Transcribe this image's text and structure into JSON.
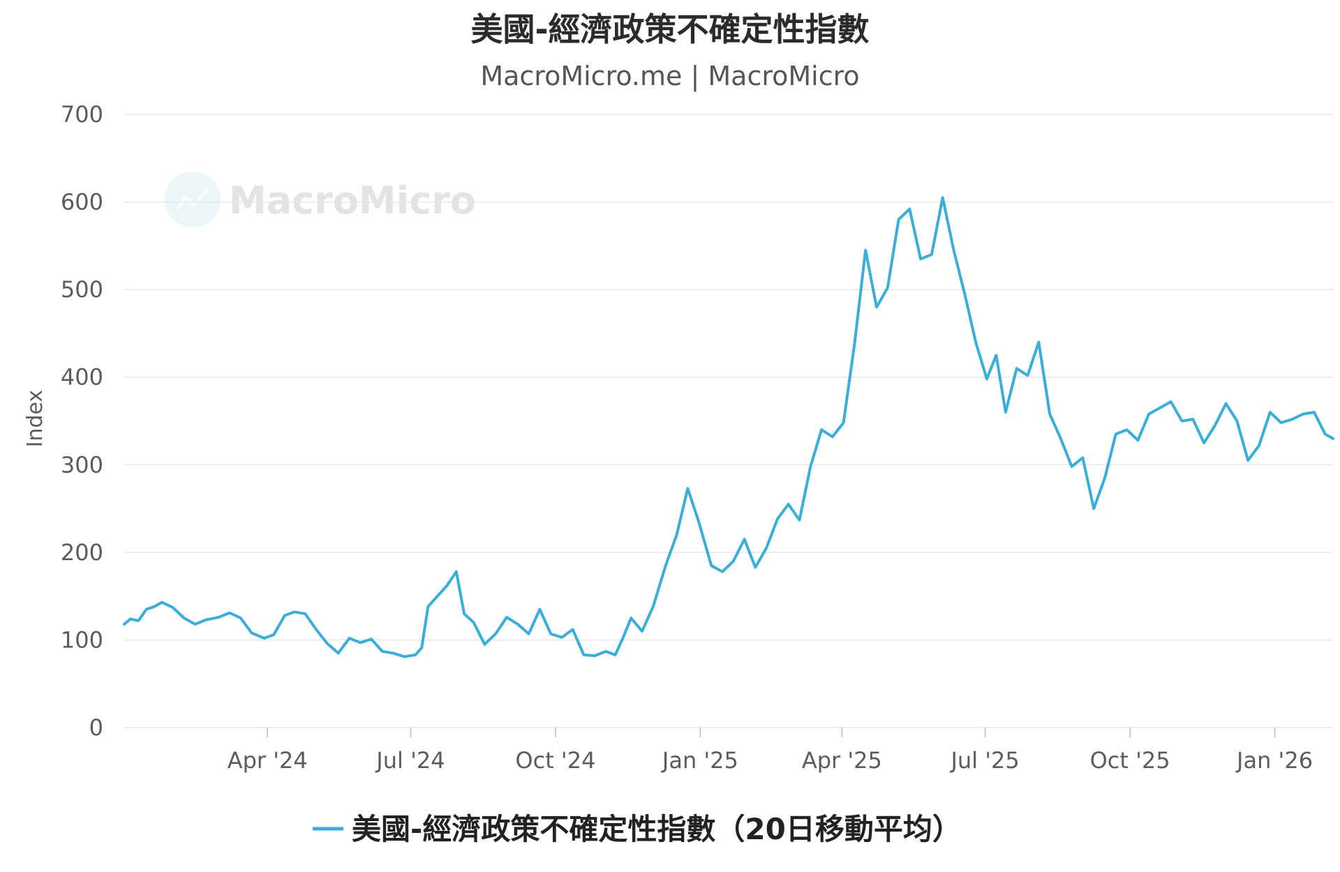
{
  "chart_data": {
    "type": "line",
    "title": "美國-經濟政策不確定性指數",
    "subtitle": "MacroMicro.me | MacroMicro",
    "watermark": "MacroMicro",
    "ylabel": "Index",
    "xlabel": "",
    "ylim": [
      0,
      700
    ],
    "y_ticks": [
      "0",
      "100",
      "200",
      "300",
      "400",
      "500",
      "600",
      "700"
    ],
    "xlim": [
      "2024-01-01",
      "2026-02-07"
    ],
    "x_ticks": [
      {
        "label": "Apr '24",
        "date": "2024-04-01"
      },
      {
        "label": "Jul '24",
        "date": "2024-07-01"
      },
      {
        "label": "Oct '24",
        "date": "2024-10-01"
      },
      {
        "label": "Jan '25",
        "date": "2025-01-01"
      },
      {
        "label": "Apr '25",
        "date": "2025-04-01"
      },
      {
        "label": "Jul '25",
        "date": "2025-07-01"
      },
      {
        "label": "Oct '25",
        "date": "2025-10-01"
      },
      {
        "label": "Jan '26",
        "date": "2026-01-01"
      }
    ],
    "grid": true,
    "legend_position": "bottom",
    "colors": {
      "series": "#3aaed8",
      "grid": "#e6e6e6",
      "watermark": "#e3e3e3"
    },
    "series": [
      {
        "name": "美國-經濟政策不確定性指數（20日移動平均）",
        "x": [
          "2024-01-01",
          "2024-01-05",
          "2024-01-10",
          "2024-01-15",
          "2024-01-20",
          "2024-01-25",
          "2024-02-01",
          "2024-02-08",
          "2024-02-15",
          "2024-02-22",
          "2024-03-01",
          "2024-03-08",
          "2024-03-15",
          "2024-03-22",
          "2024-03-30",
          "2024-04-05",
          "2024-04-12",
          "2024-04-18",
          "2024-04-25",
          "2024-05-02",
          "2024-05-09",
          "2024-05-16",
          "2024-05-23",
          "2024-05-30",
          "2024-06-06",
          "2024-06-13",
          "2024-06-20",
          "2024-06-27",
          "2024-07-04",
          "2024-07-08",
          "2024-07-12",
          "2024-07-18",
          "2024-07-24",
          "2024-07-30",
          "2024-08-04",
          "2024-08-10",
          "2024-08-17",
          "2024-08-24",
          "2024-08-31",
          "2024-09-07",
          "2024-09-14",
          "2024-09-21",
          "2024-09-28",
          "2024-10-05",
          "2024-10-12",
          "2024-10-19",
          "2024-10-26",
          "2024-11-02",
          "2024-11-08",
          "2024-11-13",
          "2024-11-18",
          "2024-11-25",
          "2024-12-02",
          "2024-12-10",
          "2024-12-17",
          "2024-12-24",
          "2024-12-31",
          "2025-01-08",
          "2025-01-15",
          "2025-01-22",
          "2025-01-29",
          "2025-02-05",
          "2025-02-12",
          "2025-02-19",
          "2025-02-26",
          "2025-03-05",
          "2025-03-12",
          "2025-03-19",
          "2025-03-26",
          "2025-04-02",
          "2025-04-09",
          "2025-04-16",
          "2025-04-23",
          "2025-04-30",
          "2025-05-07",
          "2025-05-14",
          "2025-05-21",
          "2025-05-28",
          "2025-06-04",
          "2025-06-11",
          "2025-06-18",
          "2025-06-25",
          "2025-07-02",
          "2025-07-08",
          "2025-07-14",
          "2025-07-21",
          "2025-07-28",
          "2025-08-04",
          "2025-08-11",
          "2025-08-18",
          "2025-08-25",
          "2025-09-01",
          "2025-09-08",
          "2025-09-15",
          "2025-09-22",
          "2025-09-29",
          "2025-10-06",
          "2025-10-13",
          "2025-10-20",
          "2025-10-27",
          "2025-11-03",
          "2025-11-10",
          "2025-11-17",
          "2025-11-24",
          "2025-12-01",
          "2025-12-08",
          "2025-12-15",
          "2025-12-22",
          "2025-12-29",
          "2026-01-05",
          "2026-01-12",
          "2026-01-19",
          "2026-01-26",
          "2026-02-02",
          "2026-02-07"
        ],
        "y": [
          118,
          124,
          122,
          135,
          138,
          143,
          137,
          125,
          118,
          123,
          126,
          131,
          125,
          108,
          102,
          106,
          128,
          132,
          130,
          112,
          96,
          85,
          102,
          97,
          101,
          87,
          85,
          81,
          83,
          91,
          138,
          150,
          162,
          178,
          130,
          120,
          95,
          107,
          126,
          118,
          107,
          135,
          107,
          103,
          112,
          83,
          82,
          87,
          83,
          103,
          125,
          110,
          138,
          185,
          220,
          273,
          235,
          185,
          178,
          190,
          215,
          183,
          205,
          238,
          255,
          237,
          298,
          340,
          332,
          348,
          438,
          545,
          480,
          502,
          580,
          592,
          535,
          540,
          605,
          545,
          495,
          440,
          398,
          425,
          360,
          410,
          402,
          440,
          358,
          330,
          298,
          308,
          250,
          285,
          335,
          340,
          328,
          358,
          365,
          372,
          350,
          352,
          325,
          345,
          370,
          350,
          305,
          322,
          360,
          348,
          352,
          358,
          360,
          335,
          330
        ],
        "x_numeric_note": ""
      }
    ]
  }
}
